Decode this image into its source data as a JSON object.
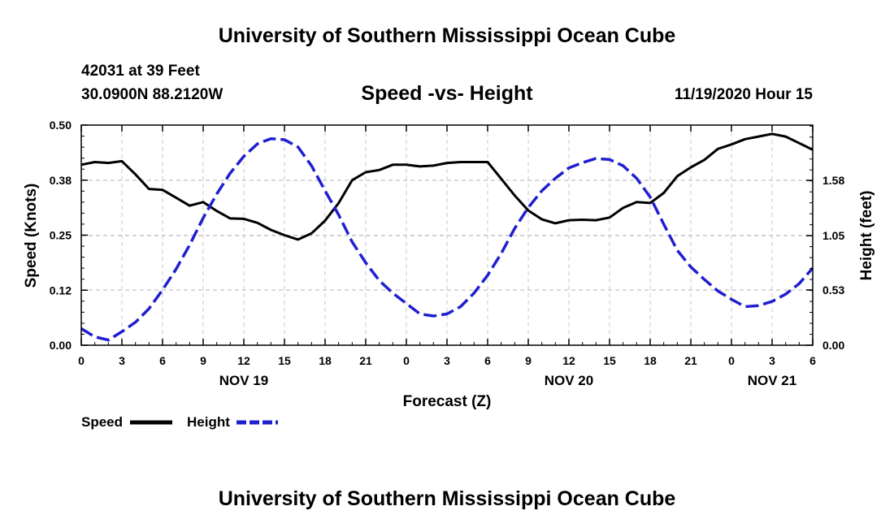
{
  "header": {
    "title": "University of Southern Mississippi Ocean Cube",
    "station": "42031 at 39 Feet",
    "coords": "30.0900N 88.2120W",
    "chart_title": "Speed -vs- Height",
    "date": "11/19/2020 Hour 15"
  },
  "footer": {
    "title": "University of Southern Mississippi Ocean Cube"
  },
  "colors": {
    "speed": "#000000",
    "height": "#1f1fd0",
    "grid": "#c8c8c8"
  },
  "chart_data": {
    "type": "line",
    "title": "Speed -vs- Height",
    "xlabel": "Forecast (Z)",
    "ylabel": "Speed (Knots)",
    "y2label": "Height (feet)",
    "xlim": [
      0,
      54
    ],
    "ylim": [
      0,
      0.5
    ],
    "y2lim": [
      0,
      2.11
    ],
    "x_ticks": [
      0,
      3,
      6,
      9,
      12,
      15,
      18,
      21,
      24,
      27,
      30,
      33,
      36,
      39,
      42,
      45,
      48,
      51,
      54
    ],
    "x_tick_labels": [
      "0",
      "3",
      "6",
      "9",
      "12",
      "15",
      "18",
      "21",
      "0",
      "3",
      "6",
      "9",
      "12",
      "15",
      "18",
      "21",
      "0",
      "3",
      "6"
    ],
    "y_ticks": [
      0,
      0.125,
      0.25,
      0.375,
      0.5
    ],
    "y_tick_labels": [
      "0.00",
      "0.12",
      "0.25",
      "0.38",
      "0.50"
    ],
    "y2_ticks": [
      0,
      0.53,
      1.05,
      1.58
    ],
    "y2_tick_labels": [
      "0.00",
      "0.53",
      "1.05",
      "1.58"
    ],
    "day_labels": [
      {
        "x": 12,
        "label": "NOV 19"
      },
      {
        "x": 36,
        "label": "NOV 20"
      },
      {
        "x": 51,
        "label": "NOV 21"
      }
    ],
    "grid": true,
    "legend_position": "bottom-left",
    "series": [
      {
        "name": "Speed",
        "axis": "left",
        "style": "solid",
        "x": [
          0,
          1,
          2,
          3,
          4,
          5,
          6,
          7,
          8,
          9,
          10,
          11,
          12,
          13,
          14,
          15,
          16,
          17,
          18,
          19,
          20,
          21,
          22,
          23,
          24,
          25,
          26,
          27,
          28,
          29,
          30,
          31,
          32,
          33,
          34,
          35,
          36,
          37,
          38,
          39,
          40,
          41,
          42,
          43,
          44,
          45,
          46,
          47,
          48,
          49,
          50,
          51,
          52,
          53,
          54
        ],
        "values": [
          0.41,
          0.416,
          0.414,
          0.418,
          0.388,
          0.355,
          0.353,
          0.335,
          0.317,
          0.325,
          0.305,
          0.288,
          0.287,
          0.278,
          0.262,
          0.25,
          0.24,
          0.254,
          0.283,
          0.323,
          0.375,
          0.393,
          0.398,
          0.41,
          0.41,
          0.406,
          0.408,
          0.414,
          0.416,
          0.416,
          0.416,
          0.378,
          0.34,
          0.306,
          0.286,
          0.277,
          0.284,
          0.285,
          0.284,
          0.29,
          0.312,
          0.325,
          0.323,
          0.346,
          0.384,
          0.404,
          0.421,
          0.446,
          0.456,
          0.468,
          0.474,
          0.48,
          0.474,
          0.459,
          0.444
        ]
      },
      {
        "name": "Height",
        "axis": "right",
        "style": "dashed",
        "x": [
          0,
          1,
          2,
          3,
          4,
          5,
          6,
          7,
          8,
          9,
          10,
          11,
          12,
          13,
          14,
          15,
          16,
          17,
          18,
          19,
          20,
          21,
          22,
          23,
          24,
          25,
          26,
          27,
          28,
          29,
          30,
          31,
          32,
          33,
          34,
          35,
          36,
          37,
          38,
          39,
          40,
          41,
          42,
          43,
          44,
          45,
          46,
          47,
          48,
          49,
          50,
          51,
          52,
          53,
          54
        ],
        "values": [
          0.16,
          0.08,
          0.05,
          0.13,
          0.22,
          0.35,
          0.53,
          0.73,
          0.96,
          1.22,
          1.45,
          1.65,
          1.81,
          1.93,
          1.98,
          1.97,
          1.9,
          1.72,
          1.48,
          1.25,
          0.99,
          0.79,
          0.62,
          0.5,
          0.4,
          0.3,
          0.28,
          0.3,
          0.37,
          0.5,
          0.67,
          0.88,
          1.12,
          1.32,
          1.48,
          1.6,
          1.7,
          1.75,
          1.79,
          1.78,
          1.72,
          1.6,
          1.42,
          1.16,
          0.91,
          0.75,
          0.63,
          0.52,
          0.44,
          0.37,
          0.38,
          0.42,
          0.49,
          0.59,
          0.74
        ]
      }
    ]
  }
}
